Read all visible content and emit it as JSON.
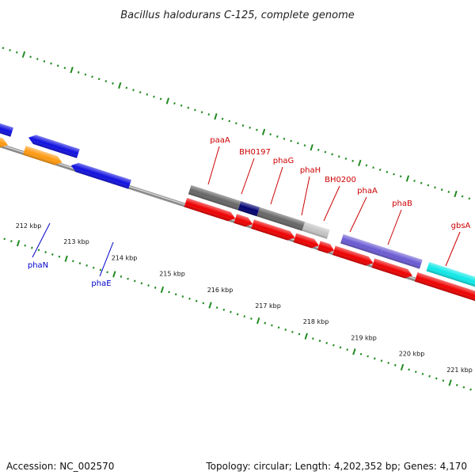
{
  "title": "Bacillus halodurans C-125, complete genome",
  "accession": "Accession: NC_002570",
  "topology": "Topology: circular; Length: 4,202,352 bp; Genes: 4,170",
  "colors": {
    "blue": "#1010e0",
    "orange": "#ff9a10",
    "red": "#ee0000",
    "gray": "#666666",
    "navy": "#000070",
    "lightgray": "#c4c4c4",
    "purple": "#6a5ad2",
    "cyan": "#10e8e8",
    "label_red": "#cc0000",
    "label_blue": "#0000cc",
    "tick_green": "#228b22"
  },
  "tick_labels": [
    "212 kbp",
    "213 kbp",
    "214 kbp",
    "215 kbp",
    "216 kbp",
    "217 kbp",
    "218 kbp",
    "219 kbp",
    "220 kbp",
    "221 kbp"
  ],
  "gene_labels_top": [
    "paaA",
    "BH0197",
    "phaG",
    "phaH",
    "BH0200",
    "phaA",
    "phaB",
    "gbsA"
  ],
  "gene_labels_bottom": [
    "phaN",
    "phaE"
  ]
}
